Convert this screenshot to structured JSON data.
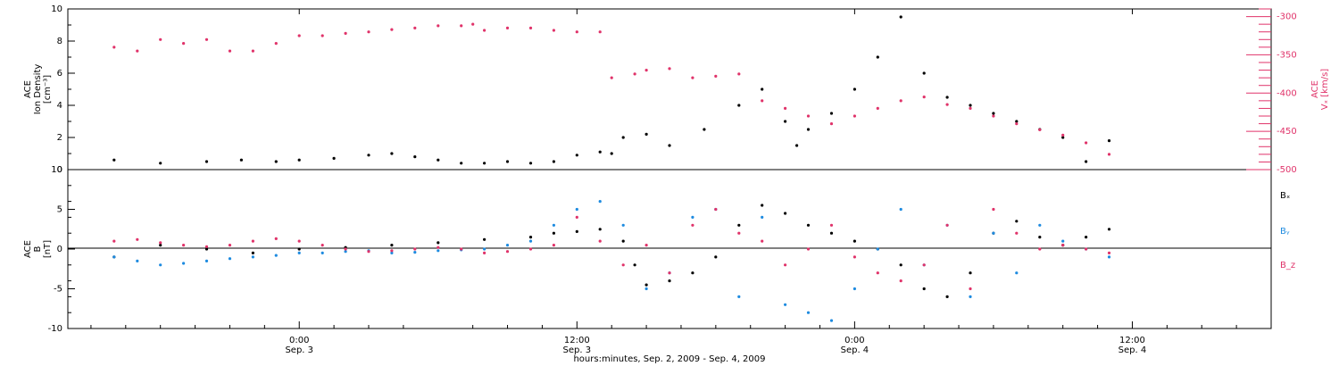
{
  "chart_data": [
    {
      "type": "scatter",
      "panel": "top",
      "ylabel_left_line1": "ACE",
      "ylabel_left_line2": "Ion Density",
      "ylabel_left_line3": "[cm⁻³]",
      "ylabel_right_line1": "ACE",
      "ylabel_right_line2": "Vₓ [km/s]",
      "ylim_left": [
        0,
        10
      ],
      "ylim_right": [
        -500,
        -290
      ],
      "yticks_left": [
        "0",
        "2",
        "4",
        "6",
        "8",
        "10"
      ],
      "yticks_right": [
        "-300",
        "-350",
        "-400",
        "-450",
        "-500"
      ],
      "colors": {
        "density": "#000000",
        "vx": "#e0336a"
      },
      "series": [
        {
          "key": "density",
          "x": [
            -16,
            -12,
            -8,
            -5,
            -2,
            0,
            3,
            6,
            8,
            10,
            12,
            14,
            16,
            18,
            20,
            22,
            24,
            26,
            27,
            28,
            30,
            32,
            35,
            38,
            40,
            42,
            43,
            44,
            46,
            48,
            50,
            52,
            54,
            56,
            58,
            60,
            62,
            64,
            66,
            68,
            70
          ],
          "y": [
            0.6,
            0.4,
            0.5,
            0.6,
            0.5,
            0.6,
            0.7,
            0.9,
            1.0,
            0.8,
            0.6,
            0.4,
            0.4,
            0.5,
            0.4,
            0.5,
            0.9,
            1.1,
            1.0,
            2.0,
            2.2,
            1.5,
            2.5,
            4.0,
            5.0,
            3.0,
            1.5,
            2.5,
            3.5,
            5.0,
            7.0,
            9.5,
            6.0,
            4.5,
            4.0,
            3.5,
            3.0,
            2.5,
            2.0,
            0.5,
            1.8
          ]
        },
        {
          "key": "vx",
          "x": [
            -16,
            -14,
            -12,
            -10,
            -8,
            -6,
            -4,
            -2,
            0,
            2,
            4,
            6,
            8,
            10,
            12,
            14,
            15,
            16,
            18,
            20,
            22,
            24,
            26,
            27,
            29,
            30,
            32,
            34,
            36,
            38,
            40,
            42,
            44,
            46,
            48,
            50,
            52,
            54,
            56,
            58,
            60,
            62,
            64,
            66,
            68,
            70
          ],
          "y": [
            -340,
            -345,
            -330,
            -335,
            -330,
            -345,
            -345,
            -335,
            -325,
            -325,
            -322,
            -320,
            -317,
            -315,
            -312,
            -312,
            -310,
            -318,
            -315,
            -315,
            -318,
            -320,
            -320,
            -380,
            -375,
            -370,
            -368,
            -380,
            -378,
            -375,
            -410,
            -420,
            -430,
            -440,
            -430,
            -420,
            -410,
            -405,
            -415,
            -420,
            -430,
            -440,
            -448,
            -455,
            -465,
            -480
          ]
        }
      ]
    },
    {
      "type": "scatter",
      "panel": "bottom",
      "ylabel_left_line1": "ACE",
      "ylabel_left_line2": "B",
      "ylabel_left_line3": "[nT]",
      "ylim": [
        -10,
        10
      ],
      "yticks": [
        "10",
        "5",
        "0",
        "-5",
        "-10"
      ],
      "legend": [
        "Bₓ",
        "Bᵧ",
        "B_z"
      ],
      "legend_placement": "right",
      "colors": {
        "bx": "#000000",
        "by": "#1e8be0",
        "bz": "#e0336a"
      },
      "series": [
        {
          "key": "bx",
          "x": [
            -16,
            -12,
            -8,
            -4,
            0,
            4,
            8,
            12,
            16,
            20,
            22,
            24,
            26,
            28,
            29,
            30,
            32,
            34,
            36,
            38,
            40,
            42,
            44,
            46,
            48,
            50,
            52,
            54,
            56,
            58,
            60,
            62,
            64,
            66,
            68,
            70
          ],
          "y": [
            -1.0,
            0.5,
            0.0,
            -0.5,
            0.0,
            0.2,
            0.5,
            0.8,
            1.2,
            1.5,
            2.0,
            2.2,
            2.5,
            1.0,
            -2.0,
            -4.5,
            -4.0,
            -3.0,
            -1.0,
            3.0,
            5.5,
            4.5,
            3.0,
            2.0,
            1.0,
            0.0,
            -2.0,
            -5.0,
            -6.0,
            -3.0,
            2.0,
            3.5,
            1.5,
            0.5,
            1.5,
            2.5
          ]
        },
        {
          "key": "by",
          "x": [
            -16,
            -14,
            -12,
            -10,
            -8,
            -6,
            -4,
            -2,
            0,
            2,
            4,
            6,
            8,
            10,
            12,
            14,
            16,
            18,
            20,
            22,
            24,
            26,
            28,
            30,
            32,
            34,
            36,
            38,
            40,
            42,
            44,
            46,
            48,
            50,
            52,
            54,
            56,
            58,
            60,
            62,
            64,
            66,
            68,
            70
          ],
          "y": [
            -1.0,
            -1.5,
            -2.0,
            -1.8,
            -1.5,
            -1.2,
            -1.0,
            -0.8,
            -0.5,
            -0.5,
            -0.3,
            -0.2,
            -0.5,
            -0.4,
            -0.2,
            -0.1,
            0.0,
            0.5,
            1.0,
            3.0,
            5.0,
            6.0,
            3.0,
            -5.0,
            -3.0,
            4.0,
            5.0,
            -6.0,
            4.0,
            -7.0,
            -8.0,
            -9.0,
            -5.0,
            0.0,
            5.0,
            -2.0,
            3.0,
            -6.0,
            2.0,
            -3.0,
            3.0,
            1.0,
            0.0,
            -1.0
          ]
        },
        {
          "key": "bz",
          "x": [
            -16,
            -14,
            -12,
            -10,
            -8,
            -6,
            -4,
            -2,
            0,
            2,
            4,
            6,
            8,
            10,
            12,
            14,
            16,
            18,
            20,
            22,
            24,
            26,
            28,
            30,
            32,
            34,
            36,
            38,
            40,
            42,
            44,
            46,
            48,
            50,
            52,
            54,
            56,
            58,
            60,
            62,
            64,
            66,
            68,
            70
          ],
          "y": [
            1.0,
            1.2,
            0.8,
            0.5,
            0.3,
            0.5,
            1.0,
            1.3,
            1.0,
            0.5,
            0.0,
            -0.3,
            -0.2,
            0.0,
            0.2,
            0.0,
            -0.5,
            -0.3,
            0.0,
            0.5,
            4.0,
            1.0,
            -2.0,
            0.5,
            -3.0,
            3.0,
            5.0,
            2.0,
            1.0,
            -2.0,
            0.0,
            3.0,
            -1.0,
            -3.0,
            -4.0,
            -2.0,
            3.0,
            -5.0,
            5.0,
            2.0,
            0.0,
            0.5,
            0.0,
            -0.5
          ]
        }
      ]
    }
  ],
  "x_axis": {
    "xlim": [
      -20,
      84
    ],
    "major_ticks": [
      0,
      24,
      48,
      72
    ],
    "minor_ticks": [
      -18,
      -15,
      -12,
      -9,
      -6,
      -3,
      3,
      6,
      9,
      15,
      18,
      21,
      27,
      30,
      33,
      36,
      39,
      42,
      45,
      51,
      54,
      57,
      60,
      63,
      66,
      69,
      75,
      78,
      81
    ],
    "tick_labels": [
      {
        "x": 0,
        "time": "0:00",
        "date": "Sep. 3"
      },
      {
        "x": 24,
        "time": "12:00",
        "date": "Sep. 3"
      },
      {
        "x": 48,
        "time": "0:00",
        "date": "Sep. 4"
      },
      {
        "x": 72,
        "time": "12:00",
        "date": "Sep. 4"
      }
    ],
    "title": "hours:minutes, Sep. 2, 2009 - Sep. 4, 2009"
  },
  "legend_labels": {
    "bx": "Bₓ",
    "by": "Bᵧ",
    "bz": "B_z"
  }
}
